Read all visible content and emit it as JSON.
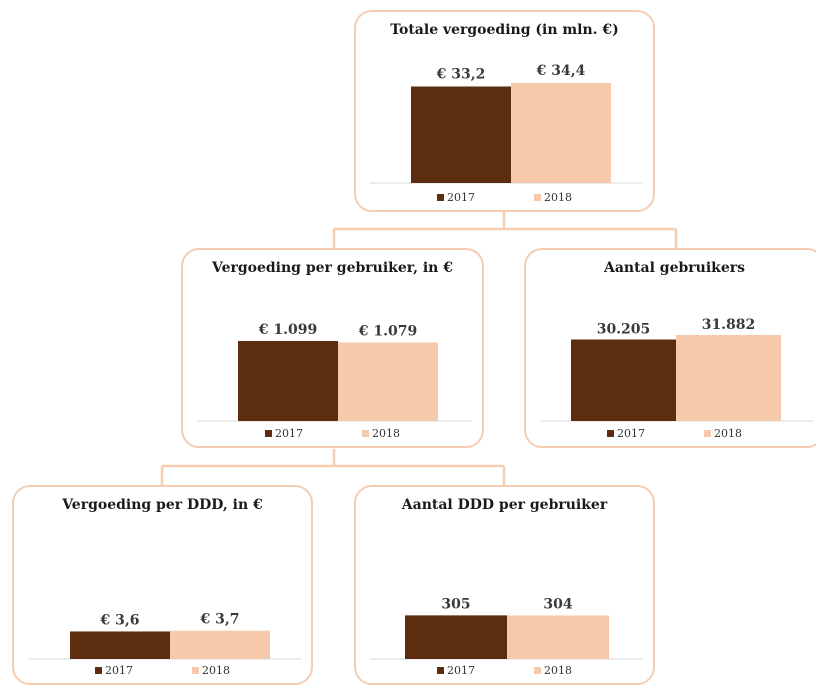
{
  "colors": {
    "series_2017": "#5c2d0e",
    "series_2018": "#f6c9ab",
    "border": "#f6cdb1"
  },
  "chart_data": [
    {
      "id": "totale-vergoeding",
      "type": "bar",
      "title": "Totale vergoeding (in mln. €)",
      "categories": [
        ""
      ],
      "series": [
        {
          "name": "2017",
          "values": [
            33.2
          ],
          "labels": [
            "€ 33,2"
          ]
        },
        {
          "name": "2018",
          "values": [
            34.4
          ],
          "labels": [
            "€ 34,4"
          ]
        }
      ],
      "ylim": [
        0,
        34.4
      ],
      "legend": "bottom"
    },
    {
      "id": "vergoeding-per-gebruiker",
      "type": "bar",
      "title": "Vergoeding per gebruiker, in €",
      "categories": [
        ""
      ],
      "series": [
        {
          "name": "2017",
          "values": [
            1099
          ],
          "labels": [
            "€ 1.099"
          ]
        },
        {
          "name": "2018",
          "values": [
            1079
          ],
          "labels": [
            "€ 1.079"
          ]
        }
      ],
      "ylim": [
        0,
        1099
      ],
      "legend": "bottom"
    },
    {
      "id": "aantal-gebruikers",
      "type": "bar",
      "title": "Aantal gebruikers",
      "categories": [
        ""
      ],
      "series": [
        {
          "name": "2017",
          "values": [
            30205
          ],
          "labels": [
            "30.205"
          ]
        },
        {
          "name": "2018",
          "values": [
            31882
          ],
          "labels": [
            "31.882"
          ]
        }
      ],
      "ylim": [
        0,
        31882
      ],
      "legend": "bottom"
    },
    {
      "id": "vergoeding-per-ddd",
      "type": "bar",
      "title": "Vergoeding per DDD, in €",
      "categories": [
        ""
      ],
      "series": [
        {
          "name": "2017",
          "values": [
            3.6
          ],
          "labels": [
            "€ 3,6"
          ]
        },
        {
          "name": "2018",
          "values": [
            3.7
          ],
          "labels": [
            "€ 3,7"
          ]
        }
      ],
      "ylim": [
        0,
        13.6
      ],
      "legend": "bottom"
    },
    {
      "id": "aantal-ddd-per-gebruiker",
      "type": "bar",
      "title": "Aantal DDD per gebruiker",
      "categories": [
        ""
      ],
      "series": [
        {
          "name": "2017",
          "values": [
            305
          ],
          "labels": [
            "305"
          ]
        },
        {
          "name": "2018",
          "values": [
            304
          ],
          "labels": [
            "304"
          ]
        }
      ],
      "ylim": [
        0,
        734
      ],
      "legend": "bottom"
    }
  ]
}
